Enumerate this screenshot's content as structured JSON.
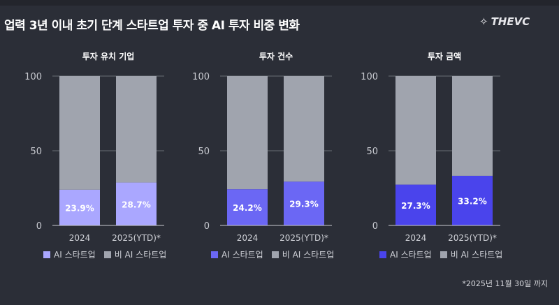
{
  "title": "업력 3년 이내 초기 단계 스타트업 투자 중 AI 투자 비중 변화",
  "logo": "THEVC",
  "footnote": "*2025년 11월 30일 까지",
  "chart_data": [
    {
      "type": "bar",
      "stacked": true,
      "title": "투자 유치 기업",
      "categories": [
        "2024",
        "2025(YTD)*"
      ],
      "ylim": [
        0,
        100
      ],
      "yticks": [
        "0",
        "50",
        "100"
      ],
      "series": [
        {
          "name": "AI 스타트업",
          "values": [
            23.9,
            28.7
          ],
          "labels": [
            "23.9%",
            "28.7%"
          ],
          "color": "#aaa7ff"
        },
        {
          "name": "비 AI 스타트업",
          "values": [
            76.1,
            71.3
          ],
          "color": "#a0a4ae"
        }
      ]
    },
    {
      "type": "bar",
      "stacked": true,
      "title": "투자 건수",
      "categories": [
        "2024",
        "2025(YTD)*"
      ],
      "ylim": [
        0,
        100
      ],
      "yticks": [
        "0",
        "50",
        "100"
      ],
      "series": [
        {
          "name": "AI 스타트업",
          "values": [
            24.2,
            29.3
          ],
          "labels": [
            "24.2%",
            "29.3%"
          ],
          "color": "#6b67f4"
        },
        {
          "name": "비 AI 스타트업",
          "values": [
            75.8,
            70.7
          ],
          "color": "#a0a4ae"
        }
      ]
    },
    {
      "type": "bar",
      "stacked": true,
      "title": "투자 금액",
      "categories": [
        "2024",
        "2025(YTD)*"
      ],
      "ylim": [
        0,
        100
      ],
      "yticks": [
        "0",
        "50",
        "100"
      ],
      "series": [
        {
          "name": "AI 스타트업",
          "values": [
            27.3,
            33.2
          ],
          "labels": [
            "27.3%",
            "33.2%"
          ],
          "color": "#4a44ec"
        },
        {
          "name": "비 AI 스타트업",
          "values": [
            72.7,
            66.8
          ],
          "color": "#a0a4ae"
        }
      ]
    }
  ]
}
